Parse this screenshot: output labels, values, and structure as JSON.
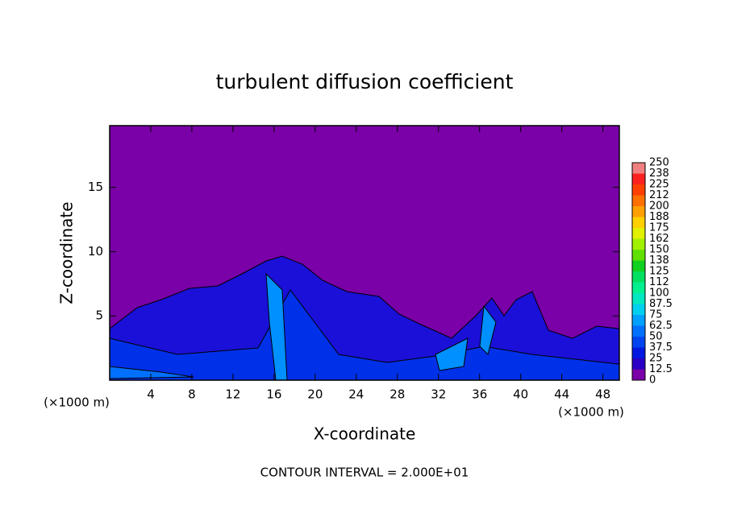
{
  "chart_data": {
    "type": "contour",
    "title": "turbulent diffusion coefficient",
    "x_label": "X-coordinate",
    "y_label": "Z-coordinate",
    "x_unit_label": "(×1000 m)",
    "y_unit_label": "(×1000 m)",
    "footer": "CONTOUR INTERVAL = 2.000E+01",
    "xlim": [
      0,
      49.6
    ],
    "xticks": [
      4,
      8,
      12,
      16,
      20,
      24,
      28,
      32,
      36,
      40,
      44,
      48
    ],
    "ylim": [
      0,
      19.8
    ],
    "yticks": [
      5,
      10,
      15
    ],
    "colorbar": {
      "levels": [
        0,
        12.5,
        25,
        37.5,
        50,
        62.5,
        75,
        87.5,
        100,
        112,
        125,
        138,
        150,
        162,
        175,
        188,
        200,
        212,
        225,
        238,
        250
      ],
      "colors": [
        "#7a00a8",
        "#2a00c4",
        "#0018e0",
        "#0044f0",
        "#0070ff",
        "#00a0ff",
        "#00d0f0",
        "#00e8c0",
        "#00f090",
        "#00e060",
        "#10d020",
        "#60e000",
        "#a0f000",
        "#e0f000",
        "#ffd000",
        "#ffa000",
        "#ff7000",
        "#ff4000",
        "#ff2020",
        "#f08080"
      ]
    }
  }
}
